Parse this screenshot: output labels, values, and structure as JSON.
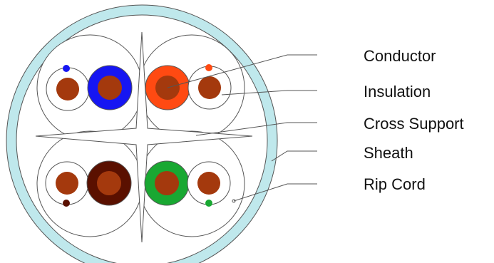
{
  "diagram": {
    "labels": {
      "conductor": "Conductor",
      "insulation": "Insulation",
      "cross_support": "Cross Support",
      "sheath": "Sheath",
      "rip_cord": "Rip Cord"
    },
    "colors": {
      "sheath": "#bfe8ec",
      "inner": "#ffffff",
      "copper": "#a4390d",
      "blue": "#1616f2",
      "orange": "#ff4a12",
      "brown": "#5a1000",
      "green": "#19a832",
      "stripe_blue": "#1616f2",
      "stripe_orange": "#ff4a12",
      "stripe_brown": "#5a1000",
      "stripe_green": "#19a832"
    }
  }
}
